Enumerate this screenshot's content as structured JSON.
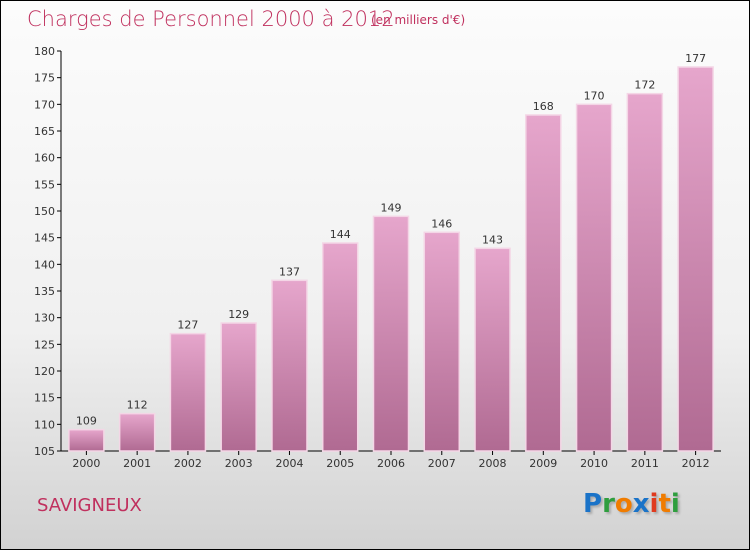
{
  "chart_data": {
    "type": "bar",
    "title": "Charges de Personnel 2000 à 2012",
    "subtitle": "(en milliers d'€)",
    "categories": [
      "2000",
      "2001",
      "2002",
      "2003",
      "2004",
      "2005",
      "2006",
      "2007",
      "2008",
      "2009",
      "2010",
      "2011",
      "2012"
    ],
    "values": [
      109,
      112,
      127,
      129,
      137,
      144,
      149,
      146,
      143,
      168,
      170,
      172,
      177
    ],
    "ylim": [
      105,
      180
    ],
    "yticks": [
      105,
      110,
      115,
      120,
      125,
      130,
      135,
      140,
      145,
      150,
      155,
      160,
      165,
      170,
      175,
      180
    ],
    "xlabel": "",
    "ylabel": "",
    "bar_color": "#d88bb8"
  },
  "city": "SAVIGNEUX",
  "logo": {
    "letters": [
      "P",
      "r",
      "o",
      "x",
      "i",
      "t",
      "i"
    ],
    "colors": [
      "#1a73c8",
      "#2e9e3e",
      "#f07c00",
      "#1a73c8",
      "#e03a1e",
      "#f07c00",
      "#2e9e3e"
    ]
  }
}
